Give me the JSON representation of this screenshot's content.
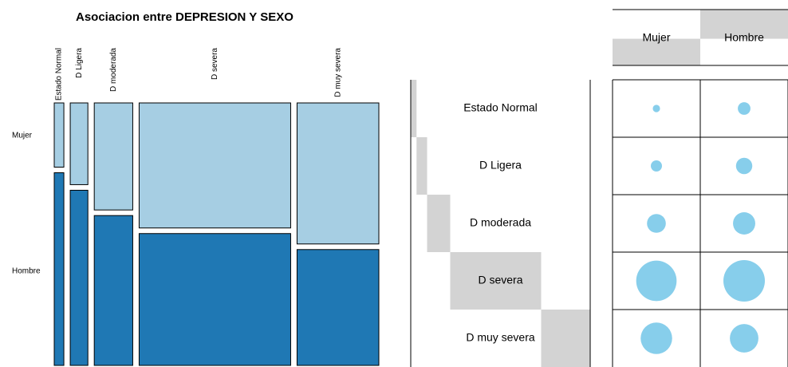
{
  "chart_data": [
    {
      "type": "mosaic",
      "title": "Asociacion entre DEPRESION Y SEXO",
      "categories": [
        "Estado Normal",
        "D Ligera",
        "D moderada",
        "D severa",
        "D muy severa"
      ],
      "series": [
        {
          "name": "Mujer",
          "color": "#a6cee3",
          "values": [
            3,
            7,
            20,
            92,
            56
          ]
        },
        {
          "name": "Hombre",
          "color": "#1f78b4",
          "values": [
            9,
            15,
            28,
            97,
            46
          ]
        }
      ]
    },
    {
      "type": "balloon",
      "bubble_color": "#87ceeb",
      "margin_color": "#d3d3d3",
      "categories": [
        "Estado Normal",
        "D Ligera",
        "D moderada",
        "D severa",
        "D muy severa"
      ],
      "series": [
        {
          "name": "Mujer",
          "values": [
            3,
            7,
            20,
            92,
            56
          ]
        },
        {
          "name": "Hombre",
          "values": [
            9,
            15,
            28,
            97,
            46
          ]
        }
      ]
    }
  ]
}
